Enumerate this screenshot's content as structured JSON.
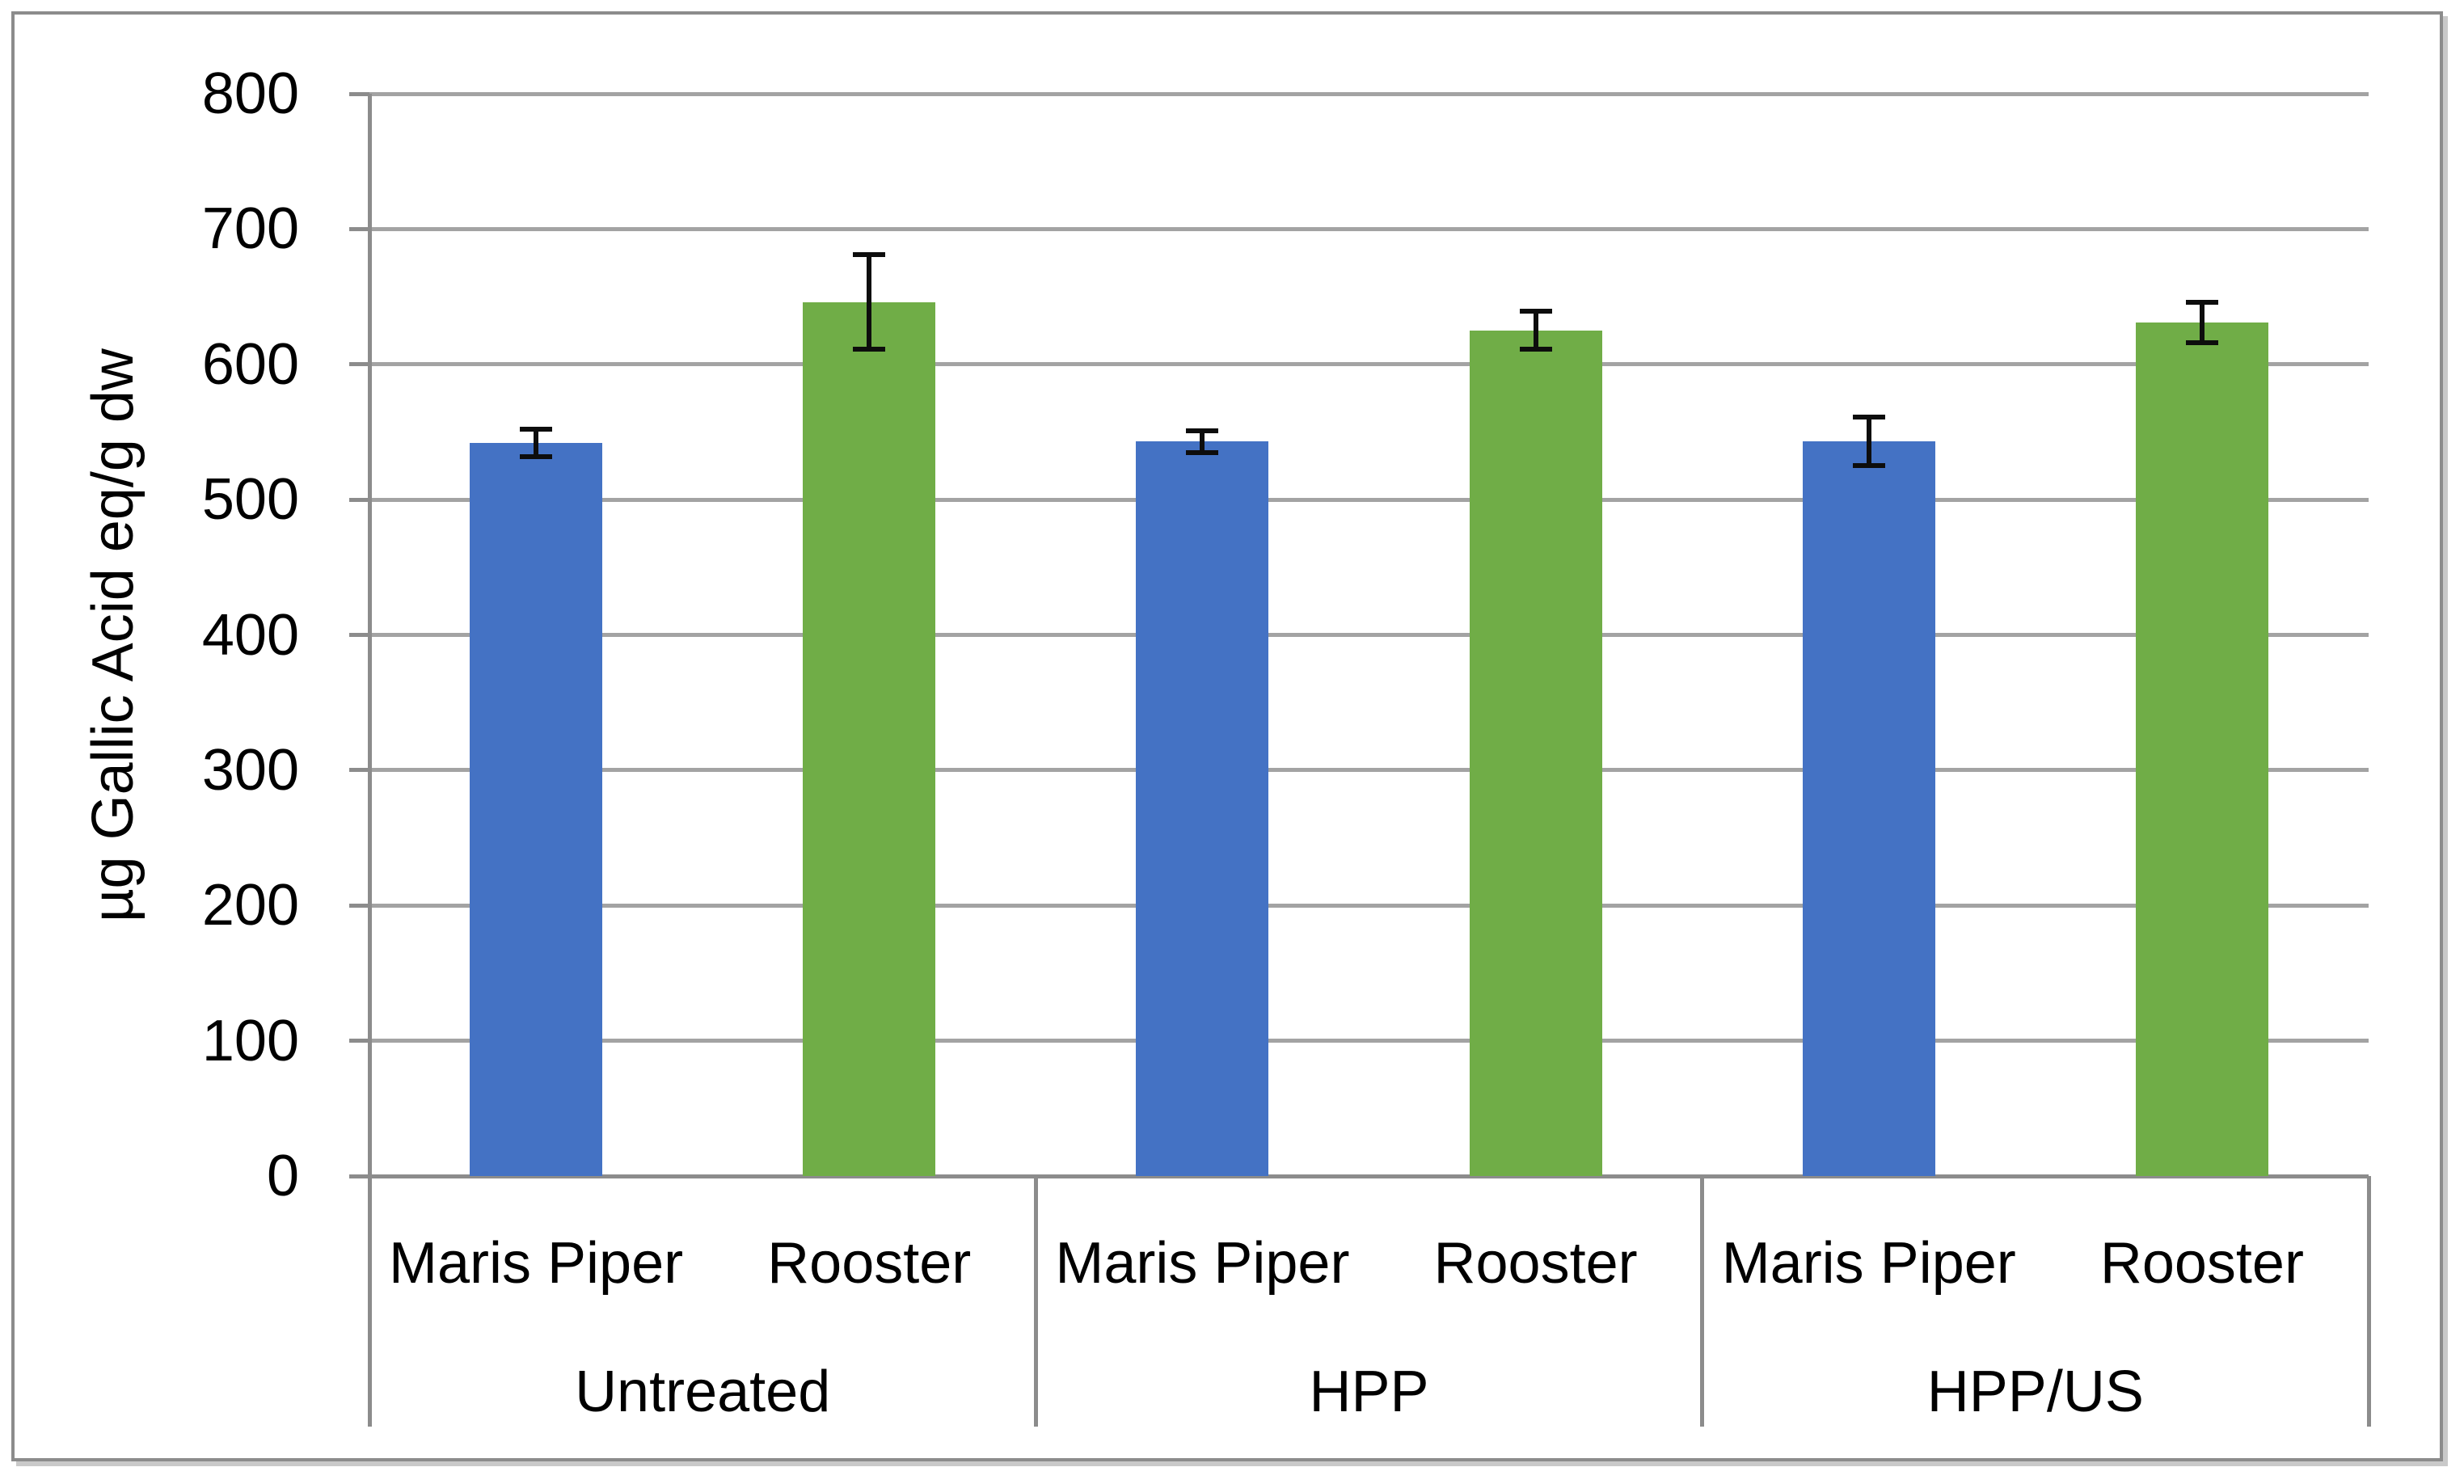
{
  "chart_data": {
    "type": "bar",
    "title": "",
    "ylabel": "µg Gallic Acid eq/g dw",
    "xlabel": "",
    "ylim": [
      0,
      800
    ],
    "ytick_step": 100,
    "ytick_labels": [
      "0",
      "100",
      "200",
      "300",
      "400",
      "500",
      "600",
      "700",
      "800"
    ],
    "grid": true,
    "legend": "none",
    "error_bars": true,
    "groups": [
      {
        "label": "Untreated",
        "categories": [
          "Maris Piper",
          "Rooster"
        ]
      },
      {
        "label": "HPP",
        "categories": [
          "Maris Piper",
          "Rooster"
        ]
      },
      {
        "label": "HPP/US",
        "categories": [
          "Maris Piper",
          "Rooster"
        ]
      }
    ],
    "series": [
      {
        "name": "Maris Piper",
        "color": "#4472C4",
        "values": [
          542,
          543,
          543
        ],
        "errors": [
          10,
          8,
          18
        ]
      },
      {
        "name": "Rooster",
        "color": "#70AD47",
        "values": [
          646,
          625,
          631
        ],
        "errors": [
          35,
          14,
          15
        ]
      }
    ]
  },
  "colors": {
    "bar_blue": "#4472C4",
    "bar_green": "#70AD47",
    "gridline": "#a3a3a3",
    "axis": "#8c8c8c",
    "error_bar": "#0d0d0d",
    "frame_border": "#8c8c8c",
    "background": "#ffffff",
    "text": "#000000"
  }
}
